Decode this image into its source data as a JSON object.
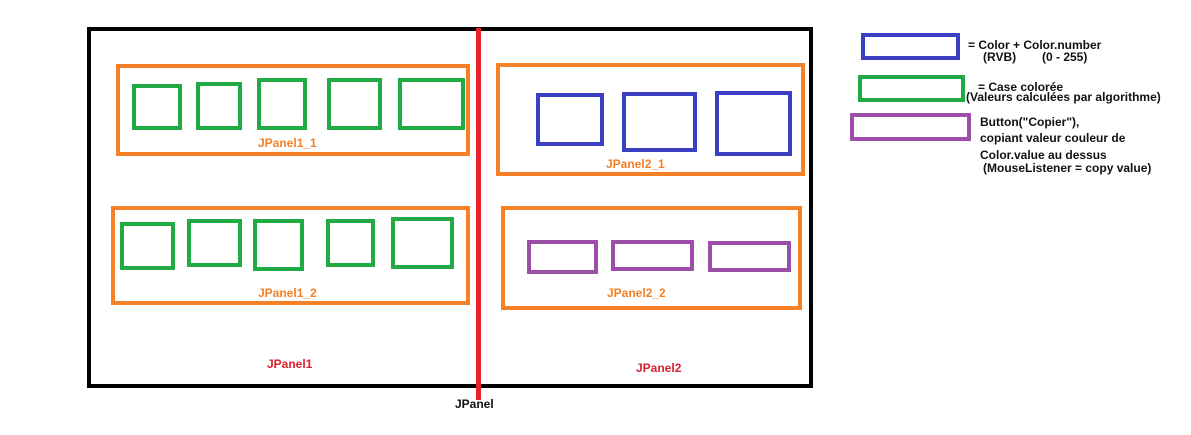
{
  "colors": {
    "frame": "#000000",
    "divider": "#e8212b",
    "orange": "#f58025",
    "green": "#22aa44",
    "blue": "#3b3fc2",
    "purple": "#9b4fa6",
    "red_text": "#d9202e"
  },
  "panels": {
    "jpanel1_1": "JPanel1_1",
    "jpanel1_2": "JPanel1_2",
    "jpanel2_1": "JPanel2_1",
    "jpanel2_2": "JPanel2_2",
    "jpanel1": "JPanel1",
    "jpanel2": "JPanel2",
    "jpanel": "JPanel"
  },
  "legend": {
    "blue_line1": "= Color + Color.number",
    "blue_line2a": "(RVB)",
    "blue_line2b": "(0 - 255)",
    "green_line1": "= Case colorée",
    "green_line2": "(Valeurs calculées par algorithme)",
    "purple_line1": "Button(\"Copier\"),",
    "purple_line2": "copiant valeur couleur de",
    "purple_line3": "Color.value au dessus",
    "purple_line4": "(MouseListener = copy value)"
  }
}
